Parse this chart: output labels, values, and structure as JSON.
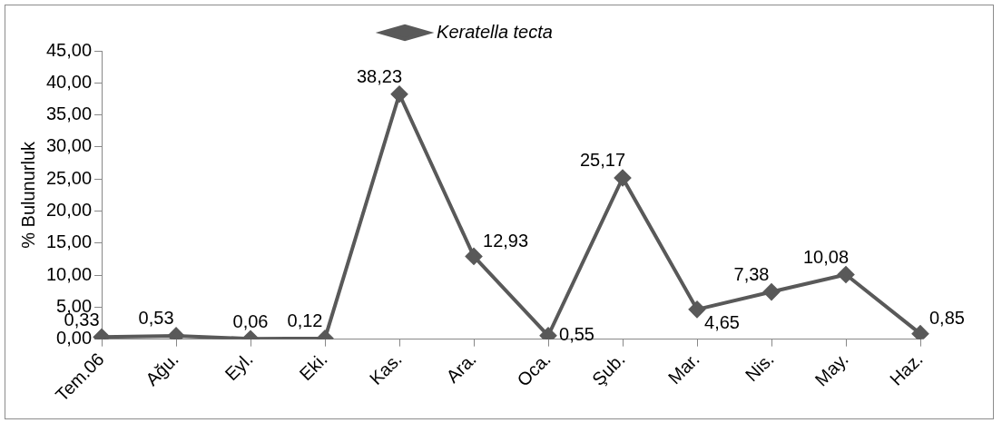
{
  "chart_data": {
    "type": "line",
    "ylabel": "% Bulunurluk",
    "categories": [
      "Tem.06",
      "Ağu.",
      "Eyl.",
      "Eki.",
      "Kas.",
      "Ara.",
      "Oca.",
      "Şub.",
      "Mar.",
      "Nis.",
      "May.",
      "Haz."
    ],
    "series": [
      {
        "name": "Keratella tecta",
        "color": "#595959",
        "values": [
          0.33,
          0.53,
          0.06,
          0.12,
          38.23,
          12.93,
          0.55,
          25.17,
          4.65,
          7.38,
          10.08,
          0.85
        ],
        "value_labels": [
          "0,33",
          "0,53",
          "0,06",
          "0,12",
          "38,23",
          "12,93",
          "0,55",
          "25,17",
          "4,65",
          "7,38",
          "10,08",
          "0,85"
        ]
      }
    ],
    "ylim": [
      0,
      45
    ],
    "yticks": [
      {
        "value": 0,
        "label": "0,00"
      },
      {
        "value": 5,
        "label": "5,00"
      },
      {
        "value": 10,
        "label": "10,00"
      },
      {
        "value": 15,
        "label": "15,00"
      },
      {
        "value": 20,
        "label": "20,00"
      },
      {
        "value": 25,
        "label": "25,00"
      },
      {
        "value": 30,
        "label": "30,00"
      },
      {
        "value": 35,
        "label": "35,00"
      },
      {
        "value": 40,
        "label": "40,00"
      },
      {
        "value": 45,
        "label": "45,00"
      }
    ],
    "grid": false,
    "legend": "top",
    "marker": "diamond",
    "line_style": "solid"
  }
}
